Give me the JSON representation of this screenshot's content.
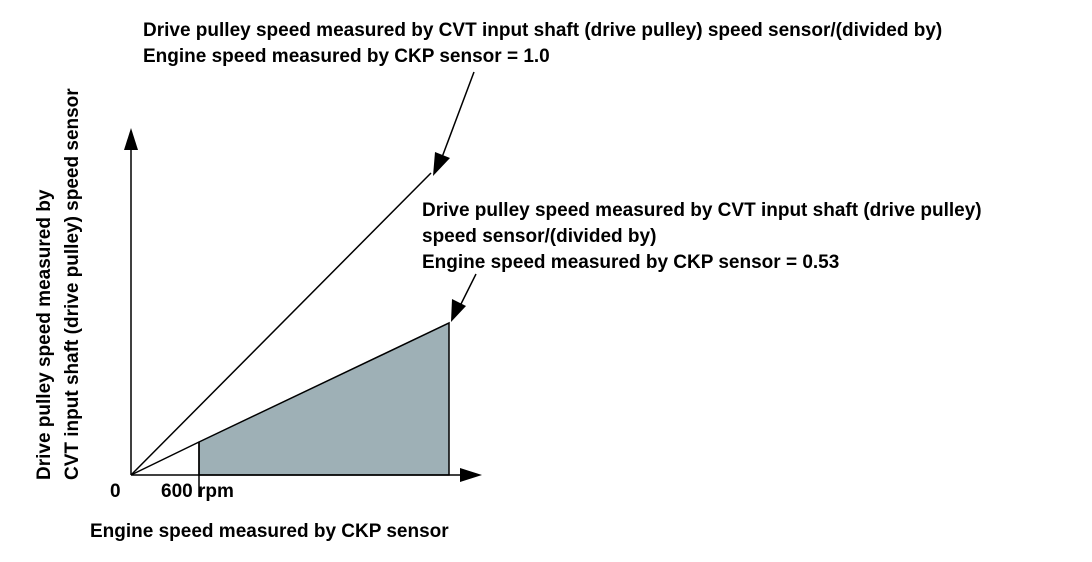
{
  "annotations": {
    "ratio_1_0": {
      "line1": "Drive pulley speed measured by CVT input shaft (drive pulley) speed sensor/(divided by)",
      "line2": "Engine speed measured by CKP sensor = 1.0"
    },
    "ratio_0_53": {
      "line1": "Drive pulley speed measured by CVT input shaft (drive pulley)",
      "line2": "speed sensor/(divided by)",
      "line3": "Engine speed measured by CKP sensor = 0.53"
    }
  },
  "y_axis": {
    "line1": "Drive pulley speed measured by",
    "line2": "CVT input shaft (drive pulley) speed sensor"
  },
  "x_axis": {
    "label": "Engine speed measured by CKP sensor",
    "origin_label": "0",
    "tick_label": "600 rpm"
  },
  "colors": {
    "region_fill": "#9eb0b6",
    "line": "#000000"
  }
}
